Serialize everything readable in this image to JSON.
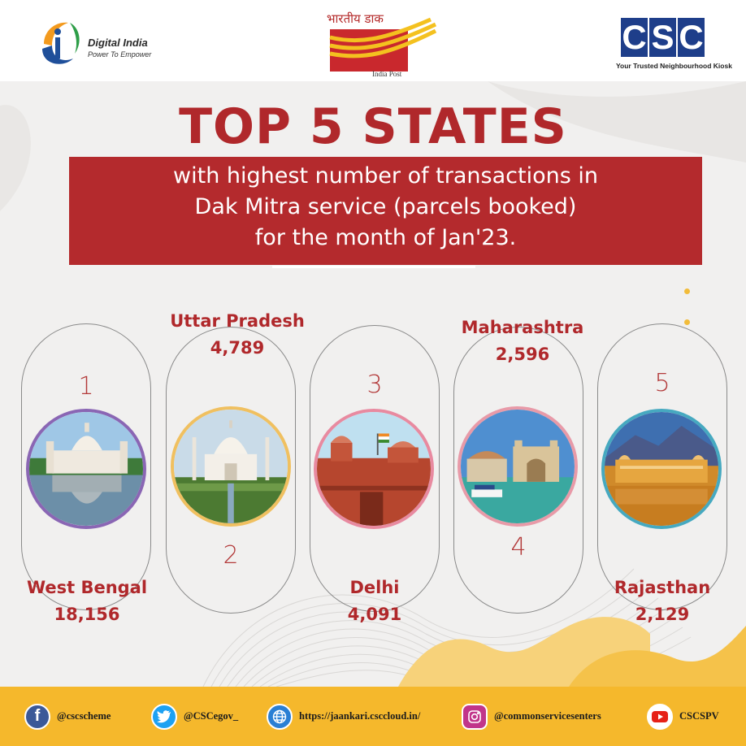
{
  "header": {
    "digital_india": {
      "name": "Digital India",
      "tagline": "Power To Empower"
    },
    "india_post": {
      "hindi": "भारतीय डाक",
      "english": "India Post"
    },
    "csc": {
      "letters": [
        "C",
        "S",
        "C"
      ],
      "tagline": "Your Trusted Neighbourhood Kiosk"
    }
  },
  "title": "TOP 5 STATES",
  "subtitle": {
    "lines": [
      "with highest number of transactions in",
      "Dak Mitra service (parcels booked)",
      "for the month of Jan'23."
    ]
  },
  "states": [
    {
      "rank": "1",
      "name": "West Bengal",
      "value": "18,156",
      "landmark": "victoria-memorial"
    },
    {
      "rank": "2",
      "name": "Uttar Pradesh",
      "value": "4,789",
      "landmark": "taj-mahal"
    },
    {
      "rank": "3",
      "name": "Delhi",
      "value": "4,091",
      "landmark": "red-fort"
    },
    {
      "rank": "4",
      "name": "Maharashtra",
      "value": "2,596",
      "landmark": "gateway-of-india"
    },
    {
      "rank": "5",
      "name": "Rajasthan",
      "value": "2,129",
      "landmark": "jal-mahal"
    }
  ],
  "footer": {
    "social": [
      {
        "icon": "facebook-icon",
        "handle": "@cscscheme"
      },
      {
        "icon": "twitter-icon",
        "handle": "@CSCegov_"
      },
      {
        "icon": "globe-icon",
        "handle": "https://jaankari.csccloud.in/"
      },
      {
        "icon": "instagram-icon",
        "handle": "@commonservicesenters"
      },
      {
        "icon": "youtube-icon",
        "handle": "CSCSPV"
      }
    ]
  },
  "colors": {
    "brand_red": "#b0282b",
    "footer_yellow": "#f5b82c",
    "csc_blue": "#1e3e8a",
    "background": "#f1f0ef"
  }
}
